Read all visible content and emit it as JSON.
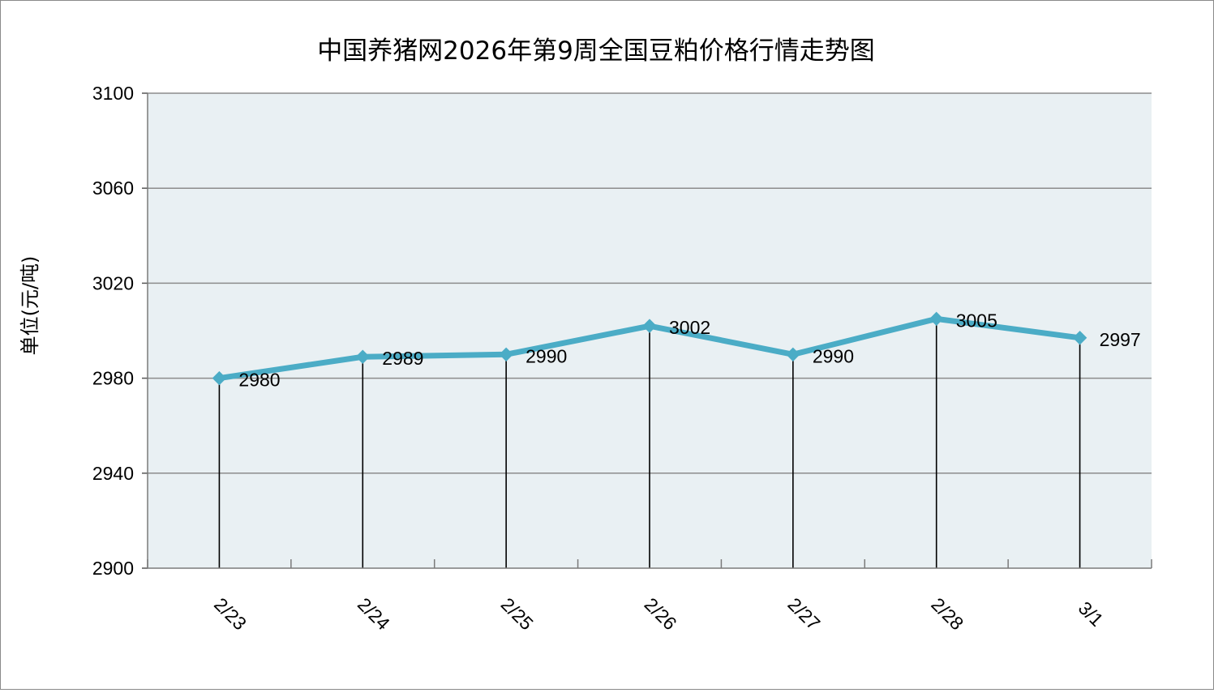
{
  "chart_data": {
    "type": "line",
    "title": "中国养猪网2026年第9周全国豆粕价格行情走势图",
    "xlabel": "",
    "ylabel": "单位(元/吨)",
    "categories": [
      "2/23",
      "2/24",
      "2/25",
      "2/26",
      "2/27",
      "2/28",
      "3/1"
    ],
    "series": [
      {
        "values": [
          2980,
          2989,
          2990,
          3002,
          2990,
          3005,
          2997
        ],
        "color": "#4bacc6"
      }
    ],
    "data_labels": [
      "2980",
      "2989",
      "2990",
      "3002",
      "2990",
      "3005",
      "2997"
    ],
    "ylim": [
      2900,
      3100
    ],
    "yticks": [
      2900,
      2940,
      2980,
      3020,
      3060,
      3100
    ],
    "ytick_labels": [
      "2900",
      "2940",
      "2980",
      "3020",
      "3060",
      "3100"
    ],
    "grid": true,
    "drop_lines": true,
    "legend": "none",
    "plot_background": "#e9f0f3",
    "gridline_color": "#8c8c8c",
    "marker": "diamond"
  }
}
